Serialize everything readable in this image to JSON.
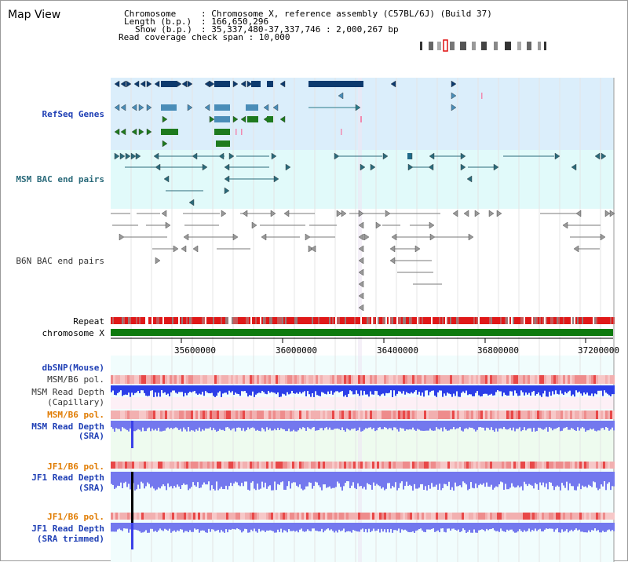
{
  "title": "Map View",
  "info": {
    "chromosome_label": "Chromosome",
    "chromosome_value": ": Chromosome X, reference assembly (C57BL/6J) (Build 37)",
    "length_label": "Length (b.p.)",
    "length_value": ": 166,650,296",
    "show_label": "Show (b.p.)",
    "show_value": ": 35,337,480-37,337,746 : 2,000,267 bp",
    "coverage_line": "Read coverage check span : 10,000"
  },
  "tracks": {
    "refseq": "RefSeq Genes",
    "msm_bac": "MSM BAC end pairs",
    "b6n_bac": "B6N BAC end pairs",
    "repeat": "Repeat",
    "chromosome": "chromosome X",
    "dbsnp": "dbSNP(Mouse)",
    "msm_b6_pol_1": "MSM/B6 pol.",
    "msm_read_depth_cap_1": "MSM Read Depth",
    "msm_read_depth_cap_2": "(Capillary)",
    "msm_b6_pol_2": "MSM/B6 pol.",
    "msm_read_depth_sra_1": "MSM Read Depth",
    "msm_read_depth_sra_2": "(SRA)",
    "jf1_b6_pol_1": "JF1/B6 pol.",
    "jf1_read_depth_sra_1": "JF1 Read Depth",
    "jf1_read_depth_sra_2": "(SRA)",
    "jf1_b6_pol_2": "JF1/B6 pol.",
    "jf1_read_depth_trim_1": "JF1 Read Depth",
    "jf1_read_depth_trim_2": "(SRA trimmed)"
  },
  "axis": {
    "ticks": [
      "35600000",
      "36000000",
      "36400000",
      "36800000",
      "37200000"
    ]
  },
  "colors": {
    "refseq_bg": "#dbeefb",
    "bac_bg": "#e1fafa",
    "cov_bg": "#f1fdfd",
    "cap_bg": "#fdf0f6",
    "sra_bg": "#eefbef",
    "gene_navy": "#0c3a6e",
    "gene_steel": "#4a8db8",
    "gene_green": "#1e7a1e",
    "bac_teal": "#2a6a7a",
    "b6n_gray": "#7a7a7a",
    "depth_blue": "#2c3ee8",
    "depth_violet": "#7378ee",
    "chromosome_green": "#0e7a0e"
  }
}
